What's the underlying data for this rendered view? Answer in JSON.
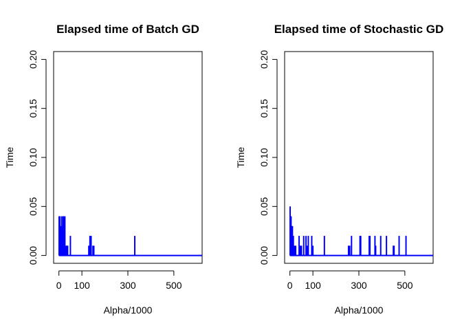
{
  "chart_data": [
    {
      "type": "line",
      "title": "Elapsed time of Batch GD",
      "xlabel": "Alpha/1000",
      "ylabel": "Time",
      "xlim": [
        -23,
        623
      ],
      "ylim": [
        -0.008,
        0.208
      ],
      "x_ticks": [
        0,
        100,
        300,
        500
      ],
      "y_ticks": [
        0.0,
        0.05,
        0.1,
        0.15,
        0.2
      ],
      "y_tick_labels": [
        "0.00",
        "0.05",
        "0.10",
        "0.15",
        "0.20"
      ],
      "grid": false,
      "color": "#0000ff",
      "series": [
        {
          "spikes": [
            {
              "x": 1,
              "y": 0.04
            },
            {
              "x": 2,
              "y": 0.03
            },
            {
              "x": 3,
              "y": 0.01
            },
            {
              "x": 4,
              "y": 0.04
            },
            {
              "x": 6,
              "y": 0.02
            },
            {
              "x": 7,
              "y": 0.03
            },
            {
              "x": 8,
              "y": 0.01
            },
            {
              "x": 10,
              "y": 0.02
            },
            {
              "x": 12,
              "y": 0.04
            },
            {
              "x": 14,
              "y": 0.01
            },
            {
              "x": 16,
              "y": 0.03
            },
            {
              "x": 18,
              "y": 0.04
            },
            {
              "x": 20,
              "y": 0.02
            },
            {
              "x": 22,
              "y": 0.04
            },
            {
              "x": 24,
              "y": 0.03
            },
            {
              "x": 26,
              "y": 0.04
            },
            {
              "x": 30,
              "y": 0.01
            },
            {
              "x": 34,
              "y": 0.01
            },
            {
              "x": 38,
              "y": 0.01
            },
            {
              "x": 50,
              "y": 0.02
            },
            {
              "x": 130,
              "y": 0.01
            },
            {
              "x": 135,
              "y": 0.02
            },
            {
              "x": 140,
              "y": 0.02
            },
            {
              "x": 148,
              "y": 0.01
            },
            {
              "x": 152,
              "y": 0.01
            },
            {
              "x": 330,
              "y": 0.02
            }
          ]
        }
      ]
    },
    {
      "type": "line",
      "title": "Elapsed time of Stochastic GD",
      "xlabel": "Alpha/1000",
      "ylabel": "Time",
      "xlim": [
        -23,
        623
      ],
      "ylim": [
        -0.008,
        0.208
      ],
      "x_ticks": [
        0,
        100,
        300,
        500
      ],
      "y_ticks": [
        0.0,
        0.05,
        0.1,
        0.15,
        0.2
      ],
      "y_tick_labels": [
        "0.00",
        "0.05",
        "0.10",
        "0.15",
        "0.20"
      ],
      "grid": false,
      "color": "#0000ff",
      "series": [
        {
          "spikes": [
            {
              "x": 1,
              "y": 0.05
            },
            {
              "x": 3,
              "y": 0.02
            },
            {
              "x": 5,
              "y": 0.04
            },
            {
              "x": 7,
              "y": 0.03
            },
            {
              "x": 9,
              "y": 0.01
            },
            {
              "x": 11,
              "y": 0.03
            },
            {
              "x": 13,
              "y": 0.01
            },
            {
              "x": 15,
              "y": 0.02
            },
            {
              "x": 20,
              "y": 0.01
            },
            {
              "x": 25,
              "y": 0.01
            },
            {
              "x": 40,
              "y": 0.02
            },
            {
              "x": 45,
              "y": 0.01
            },
            {
              "x": 50,
              "y": 0.01
            },
            {
              "x": 60,
              "y": 0.02
            },
            {
              "x": 70,
              "y": 0.02
            },
            {
              "x": 75,
              "y": 0.01
            },
            {
              "x": 80,
              "y": 0.02
            },
            {
              "x": 95,
              "y": 0.02
            },
            {
              "x": 100,
              "y": 0.01
            },
            {
              "x": 150,
              "y": 0.02
            },
            {
              "x": 255,
              "y": 0.01
            },
            {
              "x": 260,
              "y": 0.01
            },
            {
              "x": 268,
              "y": 0.02
            },
            {
              "x": 305,
              "y": 0.02
            },
            {
              "x": 308,
              "y": 0.02
            },
            {
              "x": 345,
              "y": 0.02
            },
            {
              "x": 348,
              "y": 0.02
            },
            {
              "x": 370,
              "y": 0.02
            },
            {
              "x": 373,
              "y": 0.01
            },
            {
              "x": 395,
              "y": 0.02
            },
            {
              "x": 420,
              "y": 0.02
            },
            {
              "x": 450,
              "y": 0.01
            },
            {
              "x": 453,
              "y": 0.01
            },
            {
              "x": 475,
              "y": 0.02
            },
            {
              "x": 505,
              "y": 0.02
            }
          ]
        }
      ]
    }
  ]
}
